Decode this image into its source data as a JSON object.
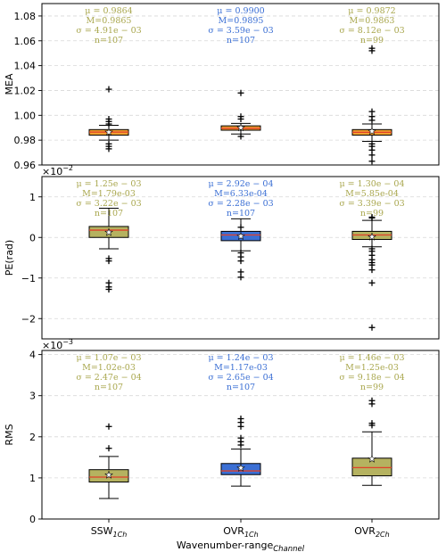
{
  "chart_data": [
    {
      "type": "box",
      "ylabel": "MEA",
      "yexp": "",
      "ylim": [
        0.96,
        1.09
      ],
      "yticks": [
        0.96,
        0.98,
        1.0,
        1.02,
        1.04,
        1.06,
        1.08
      ],
      "ytick_labels": [
        "0.96",
        "0.98",
        "1.00",
        "1.02",
        "1.04",
        "1.06",
        "1.08"
      ],
      "grid": true,
      "boxes": [
        {
          "color": "#f0a030",
          "text_color": "#a9a74e",
          "stats": [
            "μ = 0.9864",
            "M=0.9865",
            "σ = 4.91e − 03",
            "n=107"
          ],
          "q1": 0.984,
          "median": 0.9865,
          "q3": 0.9885,
          "whislo": 0.98,
          "whishi": 0.992,
          "mean": 0.9864,
          "fliers": [
            0.973,
            0.975,
            0.977,
            0.993,
            0.995,
            0.997,
            1.021
          ]
        },
        {
          "color": "#f0a030",
          "text_color": "#3b6fd4",
          "stats": [
            "μ = 0.9900",
            "M=0.9895",
            "σ = 3.59e − 03",
            "n=107"
          ],
          "q1": 0.988,
          "median": 0.9895,
          "q3": 0.9915,
          "whislo": 0.985,
          "whishi": 0.9935,
          "mean": 0.99,
          "fliers": [
            0.983,
            0.997,
            0.999,
            1.018
          ]
        },
        {
          "color": "#f0a030",
          "text_color": "#a9a74e",
          "stats": [
            "μ = 0.9872",
            "M=0.9863",
            "σ = 8.12e − 03",
            "n=99"
          ],
          "q1": 0.984,
          "median": 0.9863,
          "q3": 0.9885,
          "whislo": 0.979,
          "whishi": 0.993,
          "mean": 0.9872,
          "fliers": [
            0.963,
            0.968,
            0.972,
            0.975,
            0.977,
            0.996,
            0.999,
            1.003,
            1.052,
            1.054
          ]
        }
      ]
    },
    {
      "type": "box",
      "ylabel": "PE(rad)",
      "yexp": "×10",
      "yexp_power": "−2",
      "ylim": [
        -2.5,
        1.5
      ],
      "yticks": [
        -2,
        -1,
        0,
        1
      ],
      "ytick_labels": [
        "−2",
        "−1",
        "0",
        "1"
      ],
      "grid": true,
      "boxes": [
        {
          "color": "#b5b260",
          "text_color": "#a9a74e",
          "stats": [
            "μ = 1.25e − 03",
            "M=1.79e-03",
            "σ = 3.22e − 03",
            "n=107"
          ],
          "q1": 0.0,
          "median": 0.18,
          "q3": 0.27,
          "whislo": -0.28,
          "whishi": 0.72,
          "mean": 0.125,
          "fliers": [
            -0.52,
            -0.58,
            -1.12,
            -1.22,
            -1.28
          ]
        },
        {
          "color": "#3b6fd4",
          "text_color": "#3b6fd4",
          "stats": [
            "μ = 2.92e − 04",
            "M=6.33e-04",
            "σ = 2.28e − 03",
            "n=107"
          ],
          "q1": -0.08,
          "median": 0.06,
          "q3": 0.15,
          "whislo": -0.33,
          "whishi": 0.46,
          "mean": 0.03,
          "fliers": [
            -0.38,
            -0.48,
            -0.58,
            -0.85,
            -0.98,
            0.25
          ]
        },
        {
          "color": "#b5b260",
          "text_color": "#a9a74e",
          "stats": [
            "μ = 1.30e − 04",
            "M=5.85e-04",
            "σ = 3.39e − 03",
            "n=99"
          ],
          "q1": -0.05,
          "median": 0.06,
          "q3": 0.15,
          "whislo": -0.23,
          "whishi": 0.42,
          "mean": 0.013,
          "fliers": [
            0.5,
            0.48,
            -0.28,
            -0.34,
            -0.44,
            -0.55,
            -0.62,
            -0.68,
            -0.8,
            -1.12,
            -2.22
          ]
        }
      ]
    },
    {
      "type": "box",
      "ylabel": "RMS",
      "yexp": "×10",
      "yexp_power": "−3",
      "ylim": [
        0,
        4.1
      ],
      "yticks": [
        0,
        1,
        2,
        3,
        4
      ],
      "ytick_labels": [
        "0",
        "1",
        "2",
        "3",
        "4"
      ],
      "grid": true,
      "xlabel": "Wavenumber-range",
      "xlabel_sub": "Channel",
      "categories": [
        {
          "base": "SSW",
          "sub": "1Ch"
        },
        {
          "base": "OVR",
          "sub": "1Ch"
        },
        {
          "base": "OVR",
          "sub": "2Ch"
        }
      ],
      "boxes": [
        {
          "color": "#b5b260",
          "text_color": "#a9a74e",
          "stats": [
            "μ = 1.07e − 03",
            "M=1.02e-03",
            "σ = 2.47e − 04",
            "n=107"
          ],
          "q1": 0.9,
          "median": 1.02,
          "q3": 1.2,
          "whislo": 0.5,
          "whishi": 1.52,
          "mean": 1.07,
          "fliers": [
            1.72,
            2.25
          ]
        },
        {
          "color": "#3b6fd4",
          "text_color": "#3b6fd4",
          "stats": [
            "μ = 1.24e − 03",
            "M=1.17e-03",
            "σ = 2.65e − 04",
            "n=107"
          ],
          "q1": 1.08,
          "median": 1.17,
          "q3": 1.35,
          "whislo": 0.8,
          "whishi": 1.7,
          "mean": 1.24,
          "fliers": [
            1.8,
            1.88,
            1.97,
            2.25,
            2.35,
            2.44
          ]
        },
        {
          "color": "#b5b260",
          "text_color": "#a9a74e",
          "stats": [
            "μ = 1.46e − 03",
            "M=1.25e-03",
            "σ = 9.18e − 04",
            "n=99"
          ],
          "q1": 1.05,
          "median": 1.25,
          "q3": 1.48,
          "whislo": 0.82,
          "whishi": 2.12,
          "mean": 1.46,
          "fliers": [
            2.28,
            2.33,
            2.8,
            2.88
          ]
        }
      ]
    }
  ]
}
